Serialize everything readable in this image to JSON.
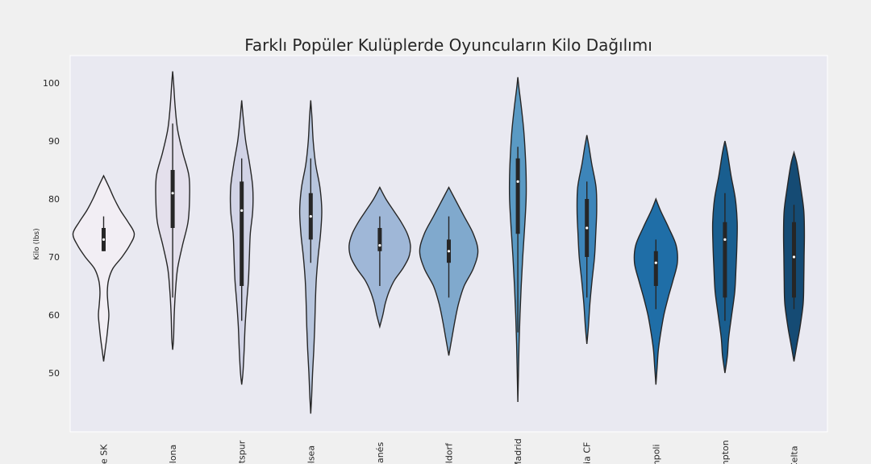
{
  "chart_data": {
    "type": "violin",
    "title": "Farklı Popüler Kulüplerde Oyuncuların Kilo Dağılımı",
    "xlabel": "",
    "ylabel": "Kilo (lbs)",
    "ylim": [
      41,
      105
    ],
    "yticks": [
      50,
      60,
      70,
      80,
      90,
      100
    ],
    "grid": false,
    "categories": [
      "ce SK",
      "elona",
      "otspur",
      "elsea",
      "ganés",
      "eldorf",
      "Madrid",
      "cia CF",
      "mpoli",
      "mpton",
      "Celta"
    ],
    "colors": [
      "#f2eef4",
      "#e4e0ec",
      "#d1d3e6",
      "#b7c5dd",
      "#9fb7d7",
      "#80a9cd",
      "#5a9ac4",
      "#3d85b9",
      "#1f6ea7",
      "#195e8f",
      "#154b74"
    ],
    "violins": [
      {
        "min": 52,
        "max": 84,
        "q1": 71,
        "median": 73,
        "q3": 75,
        "whisker_low": 71,
        "whisker_high": 77,
        "profile": [
          [
            52,
            0.0
          ],
          [
            54,
            0.05
          ],
          [
            56,
            0.1
          ],
          [
            58,
            0.14
          ],
          [
            60,
            0.17
          ],
          [
            62,
            0.14
          ],
          [
            64,
            0.12
          ],
          [
            66,
            0.16
          ],
          [
            68,
            0.3
          ],
          [
            70,
            0.6
          ],
          [
            72,
            0.85
          ],
          [
            74,
            1.0
          ],
          [
            76,
            0.8
          ],
          [
            78,
            0.55
          ],
          [
            80,
            0.35
          ],
          [
            82,
            0.18
          ],
          [
            84,
            0.0
          ]
        ]
      },
      {
        "min": 54,
        "max": 102,
        "q1": 75,
        "median": 81,
        "q3": 85,
        "whisker_low": 63,
        "whisker_high": 93,
        "profile": [
          [
            54,
            0.0
          ],
          [
            56,
            0.03
          ],
          [
            60,
            0.05
          ],
          [
            64,
            0.09
          ],
          [
            68,
            0.16
          ],
          [
            72,
            0.32
          ],
          [
            76,
            0.5
          ],
          [
            80,
            0.55
          ],
          [
            84,
            0.53
          ],
          [
            88,
            0.33
          ],
          [
            92,
            0.16
          ],
          [
            96,
            0.08
          ],
          [
            100,
            0.03
          ],
          [
            102,
            0.0
          ]
        ]
      },
      {
        "min": 48,
        "max": 97,
        "q1": 65,
        "median": 78,
        "q3": 83,
        "whisker_low": 59,
        "whisker_high": 87,
        "profile": [
          [
            48,
            0.0
          ],
          [
            50,
            0.04
          ],
          [
            54,
            0.08
          ],
          [
            58,
            0.11
          ],
          [
            62,
            0.16
          ],
          [
            66,
            0.22
          ],
          [
            70,
            0.25
          ],
          [
            74,
            0.28
          ],
          [
            78,
            0.36
          ],
          [
            82,
            0.36
          ],
          [
            86,
            0.26
          ],
          [
            90,
            0.13
          ],
          [
            94,
            0.05
          ],
          [
            97,
            0.0
          ]
        ]
      },
      {
        "min": 43,
        "max": 97,
        "q1": 73,
        "median": 77,
        "q3": 81,
        "whisker_low": 69,
        "whisker_high": 87,
        "profile": [
          [
            43,
            0.0
          ],
          [
            46,
            0.03
          ],
          [
            50,
            0.06
          ],
          [
            54,
            0.1
          ],
          [
            58,
            0.13
          ],
          [
            62,
            0.15
          ],
          [
            66,
            0.18
          ],
          [
            70,
            0.24
          ],
          [
            74,
            0.32
          ],
          [
            78,
            0.36
          ],
          [
            82,
            0.3
          ],
          [
            86,
            0.16
          ],
          [
            90,
            0.08
          ],
          [
            94,
            0.04
          ],
          [
            97,
            0.0
          ]
        ]
      },
      {
        "min": 58,
        "max": 82,
        "q1": 71,
        "median": 72,
        "q3": 75,
        "whisker_low": 65,
        "whisker_high": 77,
        "profile": [
          [
            58,
            0.0
          ],
          [
            60,
            0.1
          ],
          [
            62,
            0.18
          ],
          [
            64,
            0.3
          ],
          [
            66,
            0.48
          ],
          [
            68,
            0.75
          ],
          [
            70,
            0.95
          ],
          [
            72,
            1.0
          ],
          [
            74,
            0.9
          ],
          [
            76,
            0.7
          ],
          [
            78,
            0.45
          ],
          [
            80,
            0.2
          ],
          [
            82,
            0.0
          ]
        ]
      },
      {
        "min": 53,
        "max": 82,
        "q1": 69,
        "median": 71,
        "q3": 73,
        "whisker_low": 63,
        "whisker_high": 77,
        "profile": [
          [
            53,
            0.0
          ],
          [
            56,
            0.1
          ],
          [
            59,
            0.2
          ],
          [
            62,
            0.32
          ],
          [
            65,
            0.5
          ],
          [
            68,
            0.8
          ],
          [
            71,
            0.95
          ],
          [
            74,
            0.8
          ],
          [
            77,
            0.5
          ],
          [
            80,
            0.2
          ],
          [
            82,
            0.0
          ]
        ]
      },
      {
        "min": 45,
        "max": 101,
        "q1": 74,
        "median": 83,
        "q3": 87,
        "whisker_low": 57,
        "whisker_high": 89,
        "profile": [
          [
            45,
            0.0
          ],
          [
            50,
            0.02
          ],
          [
            55,
            0.04
          ],
          [
            60,
            0.07
          ],
          [
            65,
            0.11
          ],
          [
            70,
            0.16
          ],
          [
            75,
            0.22
          ],
          [
            80,
            0.27
          ],
          [
            84,
            0.27
          ],
          [
            88,
            0.24
          ],
          [
            92,
            0.19
          ],
          [
            96,
            0.11
          ],
          [
            99,
            0.04
          ],
          [
            101,
            0.0
          ]
        ]
      },
      {
        "min": 55,
        "max": 91,
        "q1": 70,
        "median": 75,
        "q3": 80,
        "whisker_low": 63,
        "whisker_high": 83,
        "profile": [
          [
            55,
            0.0
          ],
          [
            58,
            0.05
          ],
          [
            62,
            0.1
          ],
          [
            66,
            0.17
          ],
          [
            70,
            0.25
          ],
          [
            74,
            0.29
          ],
          [
            78,
            0.32
          ],
          [
            82,
            0.3
          ],
          [
            86,
            0.16
          ],
          [
            89,
            0.07
          ],
          [
            91,
            0.0
          ]
        ]
      },
      {
        "min": 48,
        "max": 80,
        "q1": 65,
        "median": 69,
        "q3": 71,
        "whisker_low": 61,
        "whisker_high": 73,
        "profile": [
          [
            48,
            0.0
          ],
          [
            51,
            0.04
          ],
          [
            54,
            0.08
          ],
          [
            57,
            0.16
          ],
          [
            60,
            0.26
          ],
          [
            63,
            0.4
          ],
          [
            66,
            0.56
          ],
          [
            69,
            0.7
          ],
          [
            72,
            0.66
          ],
          [
            75,
            0.42
          ],
          [
            78,
            0.15
          ],
          [
            80,
            0.0
          ]
        ]
      },
      {
        "min": 50,
        "max": 90,
        "q1": 63,
        "median": 73,
        "q3": 76,
        "whisker_low": 59,
        "whisker_high": 81,
        "profile": [
          [
            50,
            0.0
          ],
          [
            53,
            0.08
          ],
          [
            56,
            0.12
          ],
          [
            60,
            0.22
          ],
          [
            64,
            0.32
          ],
          [
            68,
            0.36
          ],
          [
            72,
            0.39
          ],
          [
            76,
            0.4
          ],
          [
            80,
            0.34
          ],
          [
            84,
            0.2
          ],
          [
            88,
            0.08
          ],
          [
            90,
            0.0
          ]
        ]
      },
      {
        "min": 52,
        "max": 88,
        "q1": 63,
        "median": 70,
        "q3": 76,
        "whisker_low": 61,
        "whisker_high": 79,
        "profile": [
          [
            52,
            0.0
          ],
          [
            55,
            0.1
          ],
          [
            58,
            0.2
          ],
          [
            62,
            0.3
          ],
          [
            66,
            0.32
          ],
          [
            70,
            0.33
          ],
          [
            74,
            0.34
          ],
          [
            78,
            0.32
          ],
          [
            82,
            0.22
          ],
          [
            86,
            0.1
          ],
          [
            88,
            0.0
          ]
        ]
      }
    ]
  }
}
